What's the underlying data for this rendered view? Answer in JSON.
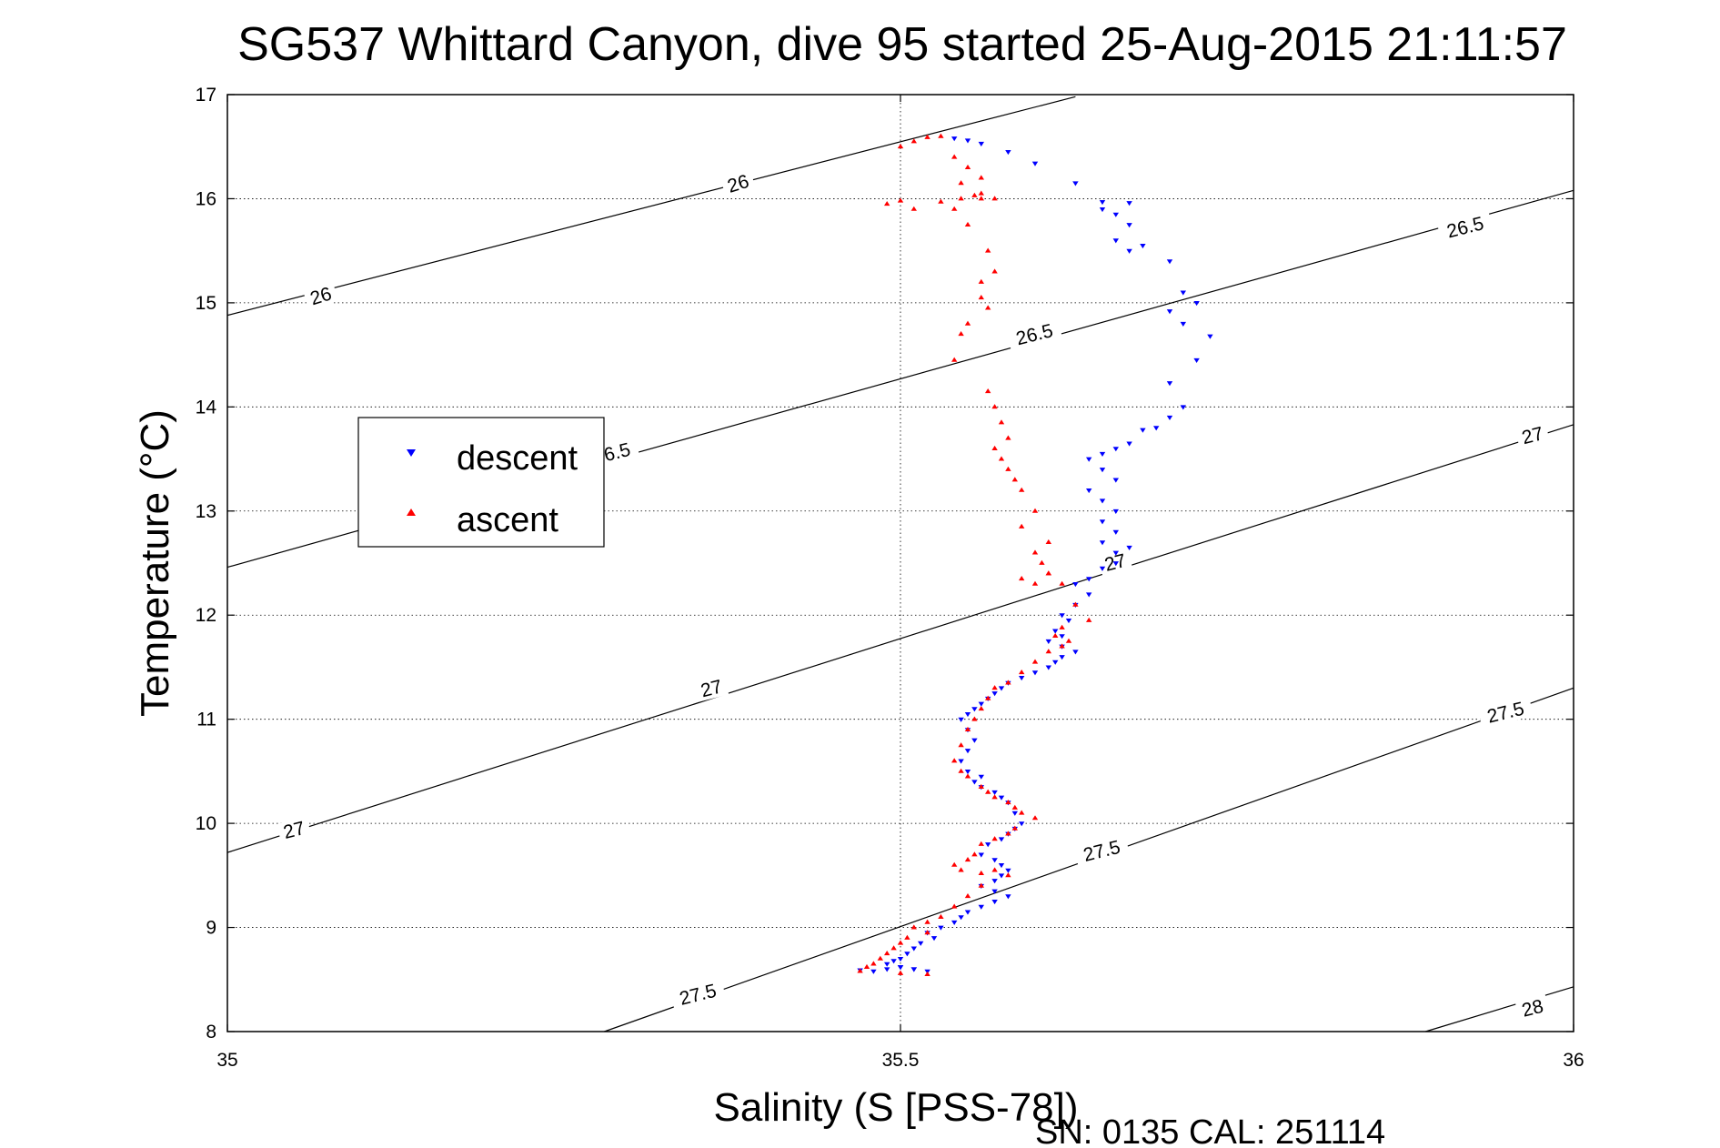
{
  "chart_data": {
    "type": "scatter",
    "title": "SG537 Whittard Canyon, dive 95 started 25-Aug-2015 21:11:57",
    "xlabel": "Salinity (S [PSS-78])",
    "ylabel": "Temperature (°C)",
    "xlim": [
      35,
      36
    ],
    "ylim": [
      8,
      17
    ],
    "x_ticks": [
      "35",
      "35.5",
      "36"
    ],
    "y_ticks": [
      "8",
      "9",
      "10",
      "11",
      "12",
      "13",
      "14",
      "15",
      "16",
      "17"
    ],
    "grid": true,
    "legend_position": "left",
    "footer": "SN: 0135  CAL: 251114",
    "isopycnals": [
      {
        "label": "26",
        "x": [
          35.0,
          35.63
        ],
        "y": [
          14.88,
          16.98
        ]
      },
      {
        "label": "26.5",
        "x": [
          35.0,
          36.0
        ],
        "y": [
          12.46,
          16.08
        ]
      },
      {
        "label": "27",
        "x": [
          35.0,
          36.0
        ],
        "y": [
          9.72,
          13.83
        ]
      },
      {
        "label": "27.5",
        "x": [
          35.28,
          36.0
        ],
        "y": [
          8.0,
          11.3
        ]
      },
      {
        "label": "28",
        "x": [
          35.89,
          36.0
        ],
        "y": [
          8.0,
          8.43
        ]
      }
    ],
    "isopycnal_labels": [
      {
        "text": "26",
        "x": 35.38,
        "y": 16.12,
        "angle": -17
      },
      {
        "text": "26",
        "x": 35.07,
        "y": 15.04,
        "angle": -17
      },
      {
        "text": "26.5",
        "x": 35.92,
        "y": 15.7,
        "angle": -14
      },
      {
        "text": "26.5",
        "x": 35.6,
        "y": 14.67,
        "angle": -14
      },
      {
        "text": "6.5",
        "x": 35.29,
        "y": 13.54,
        "angle": -14
      },
      {
        "text": "27",
        "x": 35.97,
        "y": 13.7,
        "angle": -14
      },
      {
        "text": "27",
        "x": 35.66,
        "y": 12.48,
        "angle": -14
      },
      {
        "text": "27",
        "x": 35.36,
        "y": 11.27,
        "angle": -14
      },
      {
        "text": "27",
        "x": 35.05,
        "y": 9.91,
        "angle": -14
      },
      {
        "text": "27.5",
        "x": 35.95,
        "y": 11.04,
        "angle": -14
      },
      {
        "text": "27.5",
        "x": 35.65,
        "y": 9.71,
        "angle": -14
      },
      {
        "text": "27.5",
        "x": 35.35,
        "y": 8.33,
        "angle": -14
      },
      {
        "text": "28",
        "x": 35.97,
        "y": 8.2,
        "angle": -14
      }
    ],
    "series": [
      {
        "name": "descent",
        "color": "#0000ff",
        "marker": "triangle-down",
        "x": [
          35.54,
          35.55,
          35.56,
          35.58,
          35.6,
          35.63,
          35.65,
          35.66,
          35.67,
          35.65,
          35.67,
          35.66,
          35.67,
          35.68,
          35.7,
          35.71,
          35.72,
          35.7,
          35.71,
          35.73,
          35.72,
          35.7,
          35.71,
          35.7,
          35.69,
          35.68,
          35.67,
          35.66,
          35.65,
          35.64,
          35.65,
          35.66,
          35.64,
          35.65,
          35.66,
          35.65,
          35.66,
          35.65,
          35.66,
          35.67,
          35.66,
          35.65,
          35.64,
          35.63,
          35.64,
          35.63,
          35.62,
          35.625,
          35.615,
          35.62,
          35.61,
          35.62,
          35.63,
          35.62,
          35.615,
          35.61,
          35.6,
          35.59,
          35.58,
          35.575,
          35.57,
          35.565,
          35.56,
          35.555,
          35.55,
          35.545,
          35.55,
          35.555,
          35.55,
          35.545,
          35.55,
          35.56,
          35.555,
          35.56,
          35.57,
          35.575,
          35.58,
          35.585,
          35.59,
          35.585,
          35.58,
          35.575,
          35.565,
          35.56,
          35.57,
          35.575,
          35.58,
          35.575,
          35.57,
          35.56,
          35.57,
          35.58,
          35.57,
          35.56,
          35.55,
          35.545,
          35.54,
          35.53,
          35.52,
          35.525,
          35.515,
          35.51,
          35.505,
          35.5,
          35.495,
          35.49,
          35.5,
          35.51,
          35.52,
          35.51,
          35.5,
          35.49,
          35.48,
          35.47
        ],
        "y": [
          16.58,
          16.56,
          16.53,
          16.45,
          16.34,
          16.15,
          15.97,
          15.85,
          15.96,
          15.9,
          15.75,
          15.6,
          15.5,
          15.55,
          15.4,
          15.1,
          15.0,
          14.92,
          14.8,
          14.68,
          14.45,
          14.23,
          14.0,
          13.9,
          13.8,
          13.78,
          13.65,
          13.6,
          13.55,
          13.5,
          13.4,
          13.3,
          13.2,
          13.1,
          13.0,
          12.9,
          12.8,
          12.7,
          12.6,
          12.65,
          12.5,
          12.45,
          12.35,
          12.3,
          12.2,
          12.1,
          12.0,
          11.95,
          11.85,
          11.8,
          11.75,
          11.7,
          11.65,
          11.6,
          11.55,
          11.5,
          11.45,
          11.4,
          11.35,
          11.3,
          11.25,
          11.2,
          11.15,
          11.1,
          11.05,
          11.0,
          10.9,
          10.8,
          10.7,
          10.6,
          10.5,
          10.45,
          10.4,
          10.35,
          10.3,
          10.25,
          10.2,
          10.1,
          10.0,
          9.95,
          9.9,
          9.85,
          9.8,
          9.7,
          9.65,
          9.6,
          9.55,
          9.5,
          9.45,
          9.4,
          9.35,
          9.3,
          9.25,
          9.2,
          9.15,
          9.1,
          9.05,
          9.0,
          8.95,
          8.9,
          8.85,
          8.8,
          8.75,
          8.7,
          8.68,
          8.65,
          8.62,
          8.6,
          8.58,
          8.6,
          8.62,
          8.6,
          8.58,
          8.59
        ]
      },
      {
        "name": "ascent",
        "color": "#ff0000",
        "marker": "triangle-up",
        "x": [
          35.53,
          35.52,
          35.51,
          35.5,
          35.54,
          35.55,
          35.56,
          35.545,
          35.56,
          35.57,
          35.5,
          35.49,
          35.51,
          35.53,
          35.545,
          35.555,
          35.56,
          35.54,
          35.55,
          35.565,
          35.57,
          35.56,
          35.56,
          35.565,
          35.55,
          35.545,
          35.54,
          35.565,
          35.57,
          35.575,
          35.58,
          35.57,
          35.575,
          35.58,
          35.585,
          35.59,
          35.6,
          35.59,
          35.61,
          35.6,
          35.605,
          35.61,
          35.59,
          35.6,
          35.61,
          35.62,
          35.63,
          35.64,
          35.62,
          35.615,
          35.625,
          35.62,
          35.61,
          35.6,
          35.59,
          35.58,
          35.57,
          35.565,
          35.56,
          35.555,
          35.55,
          35.545,
          35.54,
          35.545,
          35.55,
          35.56,
          35.565,
          35.57,
          35.58,
          35.585,
          35.59,
          35.6,
          35.585,
          35.58,
          35.57,
          35.56,
          35.555,
          35.55,
          35.54,
          35.545,
          35.56,
          35.57,
          35.58,
          35.56,
          35.55,
          35.54,
          35.53,
          35.52,
          35.51,
          35.52,
          35.505,
          35.5,
          35.495,
          35.49,
          35.485,
          35.48,
          35.475,
          35.47,
          35.5,
          35.52
        ],
        "y": [
          16.6,
          16.59,
          16.55,
          16.5,
          16.4,
          16.3,
          16.2,
          16.15,
          16.05,
          16.0,
          15.98,
          15.95,
          15.9,
          15.97,
          16.0,
          16.03,
          16.0,
          15.9,
          15.75,
          15.5,
          15.3,
          15.2,
          15.05,
          14.95,
          14.8,
          14.7,
          14.45,
          14.15,
          14.0,
          13.85,
          13.7,
          13.6,
          13.5,
          13.4,
          13.3,
          13.2,
          13.0,
          12.85,
          12.7,
          12.6,
          12.5,
          12.4,
          12.35,
          12.3,
          12.4,
          12.3,
          12.1,
          11.95,
          11.88,
          11.8,
          11.75,
          11.7,
          11.65,
          11.55,
          11.45,
          11.35,
          11.3,
          11.2,
          11.1,
          11.0,
          10.9,
          10.75,
          10.6,
          10.5,
          10.45,
          10.35,
          10.3,
          10.25,
          10.2,
          10.15,
          10.1,
          10.05,
          9.95,
          9.9,
          9.85,
          9.8,
          9.7,
          9.65,
          9.6,
          9.55,
          9.52,
          9.55,
          9.5,
          9.4,
          9.3,
          9.2,
          9.1,
          9.05,
          9.0,
          8.95,
          8.9,
          8.85,
          8.8,
          8.75,
          8.7,
          8.65,
          8.62,
          8.58,
          8.56,
          8.55
        ]
      }
    ]
  }
}
